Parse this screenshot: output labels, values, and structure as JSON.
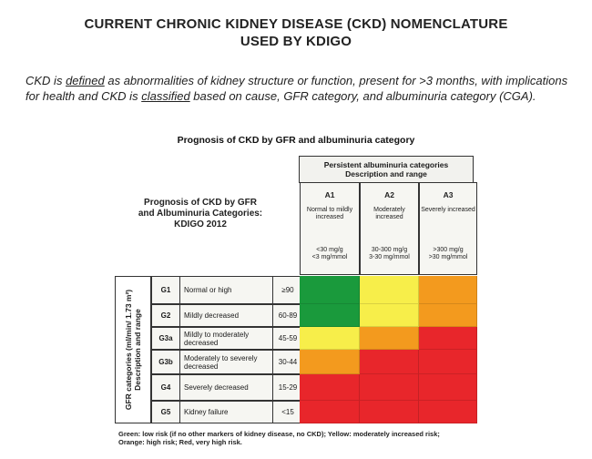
{
  "header": {
    "title_line1": "CURRENT CHRONIC KIDNEY DISEASE (CKD) NOMENCLATURE",
    "title_line2": "USED BY KDIGO",
    "intro_ckd": "CKD is",
    "intro_defined": "defined",
    "intro_mid": "as abnormalities of kidney structure or function, present for >3 months, with implications for health and CKD is",
    "intro_classified": "classified",
    "intro_end": "based on cause, GFR category, and albuminuria category (CGA)."
  },
  "figure": {
    "subtitle": "Prognosis of CKD by GFR and albuminuria category",
    "kdigo_label": "Prognosis of CKD by GFR and Albuminuria Categories: KDIGO 2012",
    "albuminuria_header_line1": "Persistent albuminuria categories",
    "albuminuria_header_line2": "Description and range",
    "gfr_axis_label_line1": "GFR categories (ml/min/ 1.73 m²)",
    "gfr_axis_label_line2": "Description and range",
    "albuminuria": [
      {
        "code": "A1",
        "desc": "Normal to mildly increased",
        "range1": "<30 mg/g",
        "range2": "<3 mg/mmol"
      },
      {
        "code": "A2",
        "desc": "Moderately increased",
        "range1": "30-300 mg/g",
        "range2": "3-30 mg/mmol"
      },
      {
        "code": "A3",
        "desc": "Severely increased",
        "range1": ">300 mg/g",
        "range2": ">30 mg/mmol"
      }
    ],
    "gfr": [
      {
        "code": "G1",
        "desc": "Normal or high",
        "range": "≥90"
      },
      {
        "code": "G2",
        "desc": "Mildly decreased",
        "range": "60-89"
      },
      {
        "code": "G3a",
        "desc": "Mildly to moderately decreased",
        "range": "45-59"
      },
      {
        "code": "G3b",
        "desc": "Moderately to severely decreased",
        "range": "30-44"
      },
      {
        "code": "G4",
        "desc": "Severely decreased",
        "range": "15-29"
      },
      {
        "code": "G5",
        "desc": "Kidney failure",
        "range": "<15"
      }
    ],
    "risk_grid": [
      [
        "green",
        "yellow",
        "orange"
      ],
      [
        "green",
        "yellow",
        "orange"
      ],
      [
        "yellow",
        "orange",
        "red"
      ],
      [
        "orange",
        "red",
        "red"
      ],
      [
        "red",
        "red",
        "red"
      ],
      [
        "red",
        "red",
        "red"
      ]
    ],
    "risk_colors": {
      "green": "#1a9a3c",
      "yellow": "#f7ee4a",
      "orange": "#f39a1e",
      "red": "#e8262b"
    },
    "legend_line1": "Green: low risk (if no other markers of kidney disease, no CKD); Yellow: moderately increased risk;",
    "legend_line2": "Orange: high risk; Red, very high risk."
  }
}
